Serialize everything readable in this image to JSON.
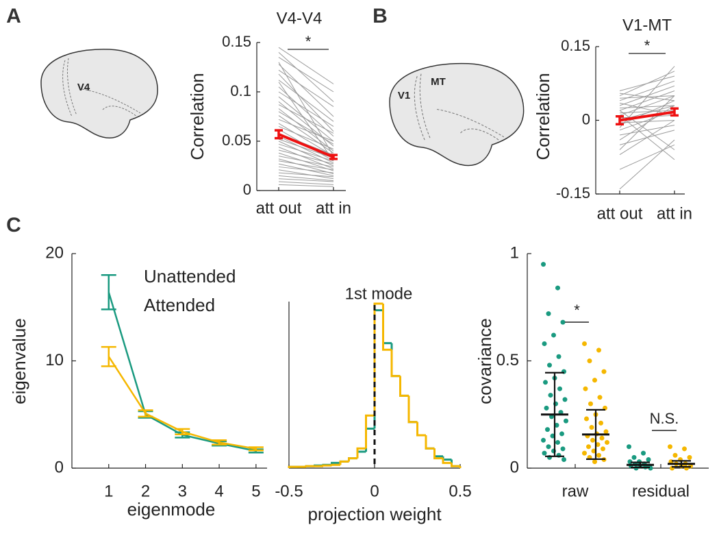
{
  "chart_data": [
    {
      "type": "paired",
      "panel": "A",
      "title": "V4-V4",
      "ylabel": "Correlation",
      "categories": [
        "att out",
        "att in"
      ],
      "ylim": [
        0,
        0.15
      ],
      "yticks": [
        0,
        0.05,
        0.1,
        0.15
      ],
      "pair_color": "#9a9a9a",
      "pairs": [
        [
          0.145,
          0.108
        ],
        [
          0.14,
          0.09
        ],
        [
          0.135,
          0.1
        ],
        [
          0.128,
          0.075
        ],
        [
          0.122,
          0.085
        ],
        [
          0.118,
          0.06
        ],
        [
          0.112,
          0.07
        ],
        [
          0.105,
          0.055
        ],
        [
          0.1,
          0.065
        ],
        [
          0.095,
          0.05
        ],
        [
          0.09,
          0.045
        ],
        [
          0.087,
          0.058
        ],
        [
          0.083,
          0.04
        ],
        [
          0.08,
          0.047
        ],
        [
          0.076,
          0.038
        ],
        [
          0.072,
          0.05
        ],
        [
          0.068,
          0.035
        ],
        [
          0.065,
          0.042
        ],
        [
          0.062,
          0.03
        ],
        [
          0.058,
          0.036
        ],
        [
          0.055,
          0.028
        ],
        [
          0.052,
          0.033
        ],
        [
          0.05,
          0.025
        ],
        [
          0.047,
          0.03
        ],
        [
          0.044,
          0.022
        ],
        [
          0.041,
          0.027
        ],
        [
          0.038,
          0.02
        ],
        [
          0.035,
          0.024
        ],
        [
          0.032,
          0.017
        ],
        [
          0.03,
          0.021
        ],
        [
          0.027,
          0.015
        ],
        [
          0.024,
          0.018
        ],
        [
          0.021,
          0.012
        ],
        [
          0.018,
          0.014
        ],
        [
          0.015,
          0.01
        ],
        [
          0.012,
          0.009
        ],
        [
          0.009,
          0.006
        ],
        [
          0.006,
          0.004
        ],
        [
          0.13,
          0.035
        ],
        [
          0.11,
          0.03
        ]
      ],
      "mean": [
        0.057,
        0.034
      ],
      "mean_error": [
        0.004,
        0.002
      ],
      "mean_color": "#ee1111",
      "significance": "*",
      "annotations": [
        "V4"
      ]
    },
    {
      "type": "paired",
      "panel": "B",
      "title": "V1-MT",
      "ylabel": "Correlation",
      "categories": [
        "att out",
        "att in"
      ],
      "ylim": [
        -0.15,
        0.15
      ],
      "yticks": [
        -0.15,
        0,
        0.15
      ],
      "pair_color": "#9a9a9a",
      "pairs": [
        [
          -0.14,
          -0.04
        ],
        [
          -0.1,
          -0.05
        ],
        [
          -0.07,
          0.0
        ],
        [
          -0.05,
          -0.02
        ],
        [
          -0.04,
          0.03
        ],
        [
          -0.03,
          -0.01
        ],
        [
          -0.02,
          0.02
        ],
        [
          -0.01,
          0.04
        ],
        [
          -0.005,
          0.0
        ],
        [
          0.0,
          0.03
        ],
        [
          0.005,
          0.01
        ],
        [
          0.01,
          0.05
        ],
        [
          0.015,
          0.02
        ],
        [
          0.02,
          0.06
        ],
        [
          0.025,
          0.03
        ],
        [
          0.03,
          0.07
        ],
        [
          0.035,
          0.01
        ],
        [
          0.04,
          0.08
        ],
        [
          0.045,
          0.05
        ],
        [
          0.05,
          0.1
        ],
        [
          0.055,
          0.04
        ],
        [
          0.06,
          0.09
        ],
        [
          -0.015,
          0.11
        ],
        [
          0.02,
          -0.06
        ],
        [
          0.01,
          -0.08
        ],
        [
          -0.06,
          0.05
        ]
      ],
      "mean": [
        0.0,
        0.017
      ],
      "mean_error": [
        0.008,
        0.007
      ],
      "mean_color": "#ee1111",
      "significance": "*",
      "annotations": [
        "V1",
        "MT"
      ]
    },
    {
      "type": "line",
      "panel": "C",
      "xlabel": "eigenmode",
      "ylabel": "eigenvalue",
      "x": [
        1,
        2,
        3,
        4,
        5
      ],
      "xlim": [
        0,
        5.3
      ],
      "xticks": [
        1,
        2,
        3,
        4,
        5
      ],
      "ylim": [
        0,
        20
      ],
      "yticks": [
        0,
        10,
        20
      ],
      "series": [
        {
          "name": "Unattended",
          "color": "#1a9a80",
          "values": [
            16.4,
            5.0,
            3.1,
            2.3,
            1.6
          ],
          "errors": [
            1.6,
            0.3,
            0.25,
            0.2,
            0.15
          ]
        },
        {
          "name": "Attended",
          "color": "#f5b700",
          "values": [
            10.4,
            5.1,
            3.4,
            2.4,
            1.8
          ],
          "errors": [
            0.9,
            0.3,
            0.25,
            0.2,
            0.15
          ]
        }
      ]
    },
    {
      "type": "histogram",
      "xlabel": "projection weight",
      "annotation": "1st mode",
      "marker_x": 0,
      "xlim": [
        -0.5,
        0.5
      ],
      "xticks": [
        -0.5,
        0,
        0.5
      ],
      "bins": [
        -0.5,
        -0.45,
        -0.4,
        -0.35,
        -0.3,
        -0.25,
        -0.2,
        -0.15,
        -0.1,
        -0.05,
        0,
        0.05,
        0.1,
        0.15,
        0.2,
        0.25,
        0.3,
        0.35,
        0.4,
        0.45,
        0.5
      ],
      "series": [
        {
          "color": "#1a9a80",
          "values": [
            0.2,
            0.2,
            0.3,
            0.4,
            0.5,
            0.8,
            1,
            1.5,
            2.5,
            6,
            24,
            19,
            14,
            11,
            7,
            5,
            3,
            1.8,
            1.3,
            0.3
          ]
        },
        {
          "color": "#f5b700",
          "values": [
            0.2,
            0.2,
            0.3,
            0.3,
            0.4,
            0.5,
            1,
            1.5,
            3,
            8,
            25,
            18,
            14,
            11,
            7,
            5,
            3,
            1.5,
            0.8,
            0.3
          ]
        }
      ]
    },
    {
      "type": "strip",
      "ylabel": "covariance",
      "categories": [
        "raw",
        "residual"
      ],
      "ylim": [
        0,
        1
      ],
      "yticks": [
        0,
        0.5,
        1
      ],
      "series": [
        {
          "color": "#1a9a80",
          "points": [
            [
              0.95,
              0.84,
              0.72,
              0.68,
              0.62,
              0.58,
              0.52,
              0.48,
              0.45,
              0.42,
              0.4,
              0.37,
              0.34,
              0.32,
              0.3,
              0.28,
              0.26,
              0.24,
              0.22,
              0.2,
              0.18,
              0.16,
              0.15,
              0.13,
              0.12,
              0.1,
              0.09,
              0.08,
              0.07,
              0.06,
              0.05,
              0.04
            ],
            [
              0.1,
              0.07,
              0.05,
              0.04,
              0.03,
              0.03,
              0.02,
              0.02,
              0.01,
              0.01,
              0.01,
              0.005,
              0.0,
              0.0
            ]
          ],
          "means": [
            0.25,
            0.015
          ],
          "errors": [
            0.195,
            0.012
          ]
        },
        {
          "color": "#f5b700",
          "points": [
            [
              0.58,
              0.55,
              0.5,
              0.45,
              0.41,
              0.37,
              0.33,
              0.3,
              0.28,
              0.25,
              0.23,
              0.21,
              0.19,
              0.17,
              0.16,
              0.15,
              0.14,
              0.13,
              0.12,
              0.11,
              0.1,
              0.09,
              0.08,
              0.07,
              0.06,
              0.05,
              0.04,
              0.03
            ],
            [
              0.1,
              0.09,
              0.06,
              0.05,
              0.04,
              0.03,
              0.02,
              0.02,
              0.01,
              0.01,
              0.0,
              0.0
            ]
          ],
          "means": [
            0.157,
            0.02
          ],
          "errors": [
            0.115,
            0.014
          ]
        }
      ],
      "comparisons": [
        "*",
        "N.S."
      ]
    }
  ]
}
